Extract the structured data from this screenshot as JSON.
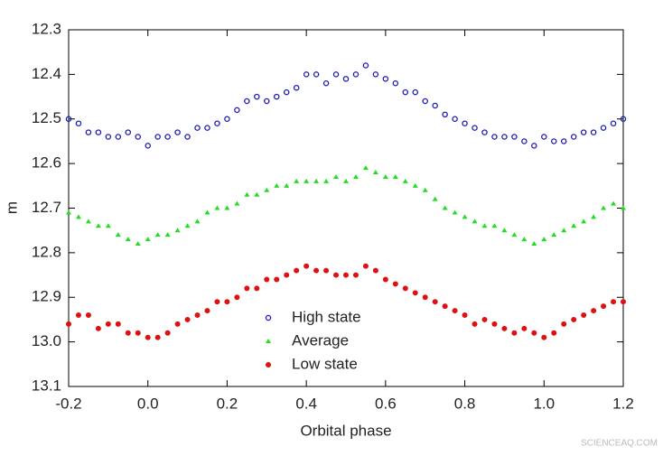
{
  "chart_data": {
    "type": "scatter",
    "xlabel": "Orbital phase",
    "ylabel": "m",
    "xlim": [
      -0.2,
      1.2
    ],
    "ylim": [
      12.3,
      13.1
    ],
    "y_inverted": true,
    "xticks": [
      -0.2,
      {
        "value": 0,
        "label": "0.0"
      },
      0.2,
      0.4,
      0.6,
      0.8,
      {
        "value": 1,
        "label": "1.0"
      },
      1.2
    ],
    "yticks": [
      12.3,
      12.4,
      12.5,
      12.6,
      12.7,
      12.8,
      12.9,
      {
        "value": 13,
        "label": "13.0"
      },
      13.1
    ],
    "legend_position": "bottom center",
    "x": [
      -0.2,
      -0.175,
      -0.15,
      -0.125,
      -0.1,
      -0.075,
      -0.05,
      -0.025,
      0,
      0.025,
      0.05,
      0.075,
      0.1,
      0.125,
      0.15,
      0.175,
      0.2,
      0.225,
      0.25,
      0.275,
      0.3,
      0.325,
      0.35,
      0.375,
      0.4,
      0.425,
      0.45,
      0.475,
      0.5,
      0.525,
      0.55,
      0.575,
      0.6,
      0.625,
      0.65,
      0.675,
      0.7,
      0.725,
      0.75,
      0.775,
      0.8,
      0.825,
      0.85,
      0.875,
      0.9,
      0.925,
      0.95,
      0.975,
      1,
      1.025,
      1.05,
      1.075,
      1.1,
      1.125,
      1.15,
      1.175,
      1.2
    ],
    "series": [
      {
        "name": "High state",
        "color": "#1a1ab4",
        "marker": "open-circle",
        "values": [
          12.5,
          12.51,
          12.53,
          12.53,
          12.54,
          12.54,
          12.53,
          12.54,
          12.56,
          12.54,
          12.54,
          12.53,
          12.54,
          12.52,
          12.52,
          12.51,
          12.5,
          12.48,
          12.46,
          12.45,
          12.46,
          12.45,
          12.44,
          12.43,
          12.4,
          12.4,
          12.42,
          12.4,
          12.41,
          12.4,
          12.38,
          12.4,
          12.41,
          12.42,
          12.44,
          12.44,
          12.46,
          12.47,
          12.49,
          12.5,
          12.51,
          12.52,
          12.53,
          12.54,
          12.54,
          12.54,
          12.55,
          12.56,
          12.54,
          12.55,
          12.55,
          12.54,
          12.53,
          12.53,
          12.52,
          12.51,
          12.5
        ]
      },
      {
        "name": "Average",
        "color": "#22dd22",
        "marker": "triangle",
        "values": [
          12.71,
          12.72,
          12.73,
          12.74,
          12.74,
          12.76,
          12.77,
          12.78,
          12.77,
          12.76,
          12.76,
          12.75,
          12.74,
          12.73,
          12.71,
          12.7,
          12.7,
          12.69,
          12.67,
          12.67,
          12.66,
          12.65,
          12.65,
          12.64,
          12.64,
          12.64,
          12.64,
          12.63,
          12.64,
          12.63,
          12.61,
          12.62,
          12.63,
          12.63,
          12.64,
          12.65,
          12.66,
          12.68,
          12.7,
          12.71,
          12.72,
          12.73,
          12.74,
          12.74,
          12.75,
          12.76,
          12.77,
          12.78,
          12.77,
          12.76,
          12.75,
          12.74,
          12.73,
          12.72,
          12.7,
          12.69,
          12.7
        ]
      },
      {
        "name": "Low state",
        "color": "#dd1111",
        "marker": "filled-circle",
        "values": [
          12.96,
          12.94,
          12.94,
          12.97,
          12.96,
          12.96,
          12.98,
          12.98,
          12.99,
          12.99,
          12.98,
          12.96,
          12.95,
          12.94,
          12.93,
          12.91,
          12.91,
          12.9,
          12.88,
          12.88,
          12.86,
          12.86,
          12.85,
          12.84,
          12.83,
          12.84,
          12.84,
          12.85,
          12.85,
          12.85,
          12.83,
          12.84,
          12.86,
          12.87,
          12.88,
          12.89,
          12.9,
          12.91,
          12.92,
          12.93,
          12.94,
          12.96,
          12.95,
          12.96,
          12.97,
          12.98,
          12.97,
          12.98,
          12.99,
          12.98,
          12.96,
          12.95,
          12.94,
          12.93,
          12.92,
          12.91,
          12.91
        ]
      }
    ],
    "watermark": "SCIENCEAQ.COM"
  }
}
